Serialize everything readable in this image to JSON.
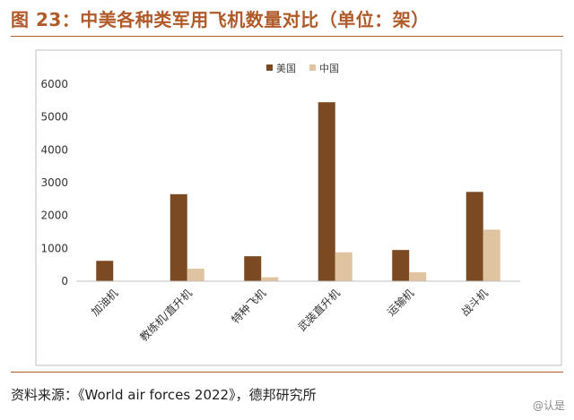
{
  "figure": {
    "title": "图 23：中美各种类军用飞机数量对比（单位：架）",
    "source": "资料来源：《World air forces 2022》，德邦研究所",
    "watermark": "@认是"
  },
  "colors": {
    "usa": "#7b4a22",
    "china": "#e0c4a0",
    "accent": "#b05a2a"
  },
  "chart_data": {
    "type": "bar",
    "title": "",
    "xlabel": "",
    "ylabel": "",
    "categories": [
      "加油机",
      "教练机/直升机",
      "特种飞机",
      "武装直升机",
      "运输机",
      "战斗机"
    ],
    "series": [
      {
        "name": "美国",
        "values": [
          620,
          2650,
          760,
          5450,
          950,
          2720
        ]
      },
      {
        "name": "中国",
        "values": [
          10,
          380,
          120,
          880,
          270,
          1570
        ]
      }
    ],
    "ylim": [
      0,
      6000
    ],
    "yticks": [
      0,
      1000,
      2000,
      3000,
      4000,
      5000,
      6000
    ],
    "legend_position": "top-center",
    "grid": false
  }
}
